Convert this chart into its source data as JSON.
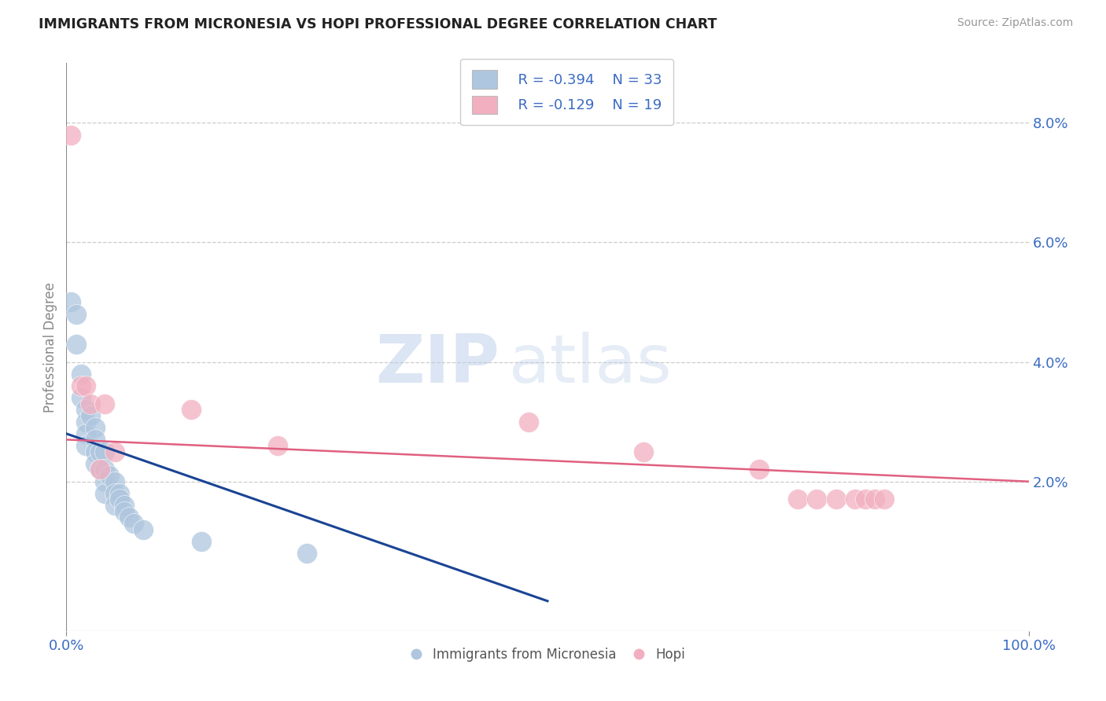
{
  "title": "IMMIGRANTS FROM MICRONESIA VS HOPI PROFESSIONAL DEGREE CORRELATION CHART",
  "source": "Source: ZipAtlas.com",
  "ylabel": "Professional Degree",
  "right_yticks": [
    "2.0%",
    "4.0%",
    "6.0%",
    "8.0%"
  ],
  "right_ytick_vals": [
    0.02,
    0.04,
    0.06,
    0.08
  ],
  "legend1_label": "Immigrants from Micronesia",
  "legend2_label": "Hopi",
  "legend1_R": "R = -0.394",
  "legend1_N": "N = 33",
  "legend2_R": "R = -0.129",
  "legend2_N": "N = 19",
  "blue_color": "#aec6de",
  "pink_color": "#f2afc0",
  "blue_line_color": "#1a4494",
  "pink_line_color": "#e06080",
  "legend_text_color": "#3a6bc4",
  "blue_scatter_x": [
    0.005,
    0.01,
    0.01,
    0.015,
    0.015,
    0.02,
    0.02,
    0.02,
    0.02,
    0.025,
    0.03,
    0.03,
    0.03,
    0.03,
    0.035,
    0.035,
    0.04,
    0.04,
    0.04,
    0.04,
    0.045,
    0.05,
    0.05,
    0.05,
    0.055,
    0.055,
    0.06,
    0.06,
    0.065,
    0.07,
    0.08,
    0.14,
    0.25
  ],
  "blue_scatter_y": [
    0.05,
    0.048,
    0.043,
    0.038,
    0.034,
    0.032,
    0.03,
    0.028,
    0.026,
    0.031,
    0.029,
    0.027,
    0.025,
    0.023,
    0.025,
    0.022,
    0.025,
    0.022,
    0.02,
    0.018,
    0.021,
    0.02,
    0.018,
    0.016,
    0.018,
    0.017,
    0.016,
    0.015,
    0.014,
    0.013,
    0.012,
    0.01,
    0.008
  ],
  "pink_scatter_x": [
    0.005,
    0.015,
    0.02,
    0.025,
    0.035,
    0.04,
    0.05,
    0.13,
    0.22,
    0.48,
    0.6,
    0.72,
    0.76,
    0.78,
    0.8,
    0.82,
    0.83,
    0.84,
    0.85
  ],
  "pink_scatter_y": [
    0.078,
    0.036,
    0.036,
    0.033,
    0.022,
    0.033,
    0.025,
    0.032,
    0.026,
    0.03,
    0.025,
    0.022,
    0.017,
    0.017,
    0.017,
    0.017,
    0.017,
    0.017,
    0.017
  ],
  "blue_line_x0": 0.0,
  "blue_line_x1": 0.5,
  "blue_line_y0": 0.028,
  "blue_line_y1": 0.0,
  "pink_line_x0": 0.0,
  "pink_line_x1": 1.0,
  "pink_line_y0": 0.027,
  "pink_line_y1": 0.02,
  "xlim": [
    0.0,
    1.0
  ],
  "ylim": [
    -0.005,
    0.09
  ],
  "watermark_zip": "ZIP",
  "watermark_atlas": "atlas",
  "background_color": "#ffffff",
  "grid_color": "#cccccc",
  "grid_linestyle": "--",
  "axis_color": "#888888"
}
